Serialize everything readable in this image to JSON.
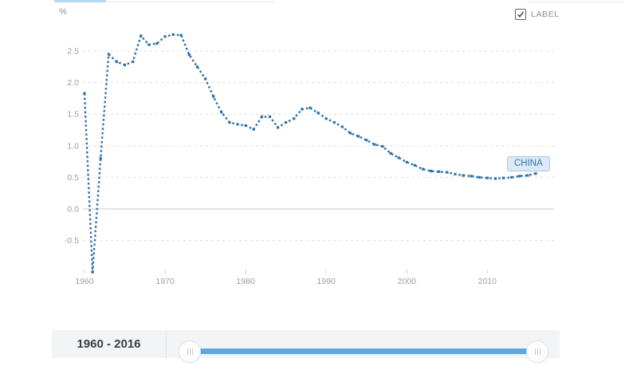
{
  "header": {
    "unit_label": "%",
    "label_checkbox": {
      "label": "LABEL",
      "checked": true
    }
  },
  "series_tag": {
    "text": "CHINA"
  },
  "range_slider": {
    "range_label": "1960 - 2016",
    "min": 1960,
    "max": 2016,
    "selected_start": 1960,
    "selected_end": 2016
  },
  "colors": {
    "line": "#2e73ad",
    "grid": "#dcdcdc",
    "zero_line": "#c9c9c9",
    "tick_text": "#999fa4",
    "active_tab": "#b5d7f0",
    "slider_track": "#5fa8df",
    "tag_bg": "#dce9f6",
    "tag_border": "#a9c7e2",
    "tag_text": "#3d74a8"
  },
  "chart_data": {
    "type": "line",
    "title": "",
    "xlabel": "",
    "ylabel": "%",
    "grid": "dashed-horizontal",
    "legend_position": "inline-right-label",
    "x_ticks": [
      1960,
      1970,
      1980,
      1990,
      2000,
      2010
    ],
    "y_ticks": [
      2.5,
      2.0,
      1.5,
      1.0,
      0.5,
      0.0,
      -0.5
    ],
    "xlim": [
      1960,
      2017.5
    ],
    "ylim": [
      -1.1,
      3.1
    ],
    "series": [
      {
        "name": "CHINA",
        "x": [
          1960,
          1961,
          1962,
          1963,
          1964,
          1965,
          1966,
          1967,
          1968,
          1969,
          1970,
          1971,
          1972,
          1973,
          1974,
          1975,
          1976,
          1977,
          1978,
          1979,
          1980,
          1981,
          1982,
          1983,
          1984,
          1985,
          1986,
          1987,
          1988,
          1989,
          1990,
          1991,
          1992,
          1993,
          1994,
          1995,
          1996,
          1997,
          1998,
          1999,
          2000,
          2001,
          2002,
          2003,
          2004,
          2005,
          2006,
          2007,
          2008,
          2009,
          2010,
          2011,
          2012,
          2013,
          2014,
          2015,
          2016
        ],
        "values": [
          1.83,
          -1.0,
          0.8,
          2.45,
          2.33,
          2.28,
          2.33,
          2.74,
          2.6,
          2.62,
          2.73,
          2.76,
          2.75,
          2.44,
          2.25,
          2.06,
          1.78,
          1.53,
          1.37,
          1.34,
          1.32,
          1.26,
          1.46,
          1.46,
          1.29,
          1.37,
          1.43,
          1.58,
          1.6,
          1.52,
          1.43,
          1.37,
          1.3,
          1.2,
          1.15,
          1.09,
          1.02,
          0.99,
          0.88,
          0.81,
          0.74,
          0.69,
          0.63,
          0.6,
          0.59,
          0.58,
          0.55,
          0.53,
          0.52,
          0.5,
          0.49,
          0.48,
          0.49,
          0.5,
          0.52,
          0.53,
          0.56
        ]
      }
    ]
  }
}
